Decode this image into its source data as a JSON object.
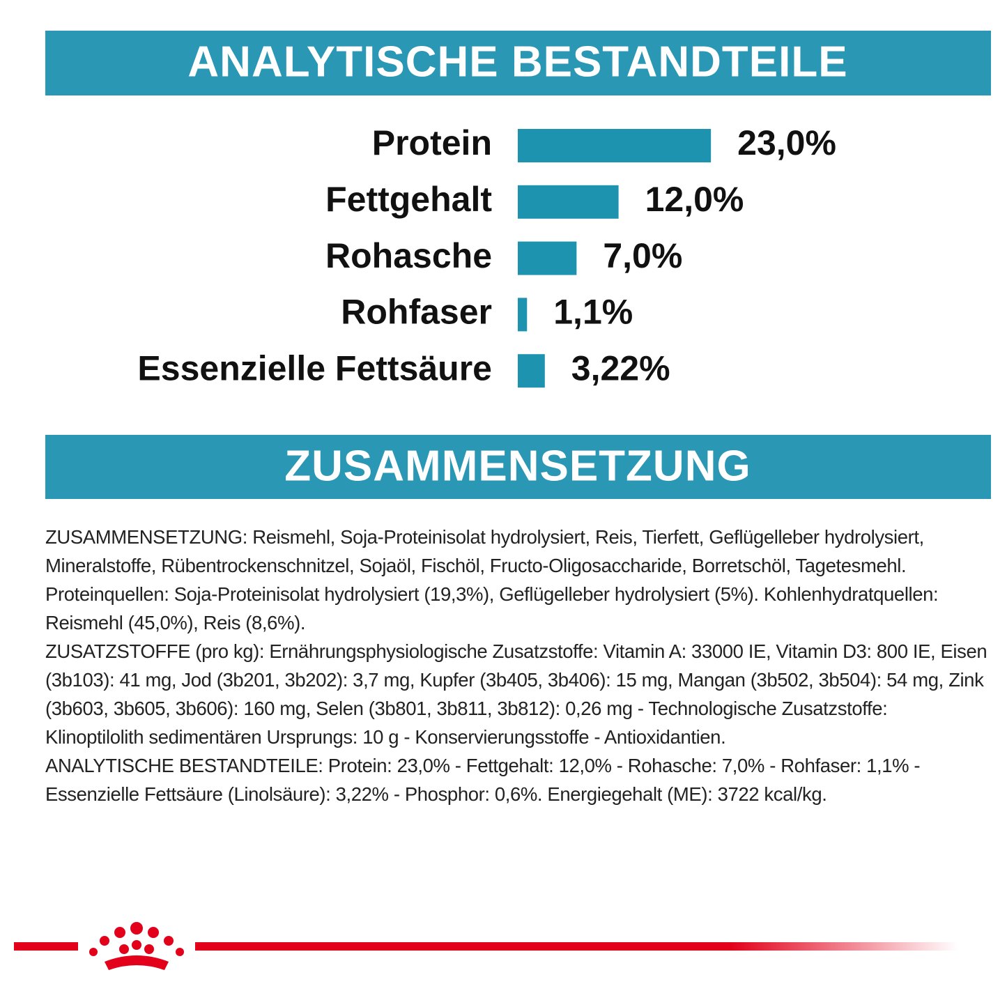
{
  "chart_data": {
    "type": "bar",
    "title": "ANALYTISCHE BESTANDTEILE",
    "categories": [
      "Protein",
      "Fettgehalt",
      "Rohasche",
      "Rohfaser",
      "Essenzielle Fettsäure"
    ],
    "values": [
      23.0,
      12.0,
      7.0,
      1.1,
      3.22
    ],
    "value_labels": [
      "23,0%",
      "12,0%",
      "7,0%",
      "1,1%",
      "3,22%"
    ],
    "color": "#1e93b0"
  },
  "section": {
    "title": "ZUSAMMENSETZUNG",
    "paragraphs": [
      "ZUSAMMENSETZUNG: Reismehl, Soja-Proteinisolat hydrolysiert, Reis, Tierfett, Geflügelleber hydrolysiert, Mineralstoffe, Rübentrockenschnitzel, Sojaöl, Fischöl, Fructo-Oligosaccharide, Borretschöl, Tagetesmehl. Proteinquellen: Soja-Proteinisolat hydrolysiert (19,3%), Geflügelleber hydrolysiert (5%). Kohlenhydratquellen: Reismehl (45,0%), Reis (8,6%).",
      "ZUSATZSTOFFE (pro kg): Ernährungsphysiologische Zusatzstoffe: Vitamin A: 33000 IE, Vitamin D3: 800 IE, Eisen (3b103): 41 mg, Jod (3b201, 3b202): 3,7 mg, Kupfer (3b405, 3b406): 15 mg, Mangan (3b502, 3b504): 54 mg, Zink (3b603, 3b605, 3b606): 160 mg, Selen (3b801, 3b811, 3b812): 0,26 mg - Technologische Zusatzstoffe: Klinoptilolith sedimentären Ursprungs: 10 g - Konservierungsstoffe - Antioxidantien.",
      "ANALYTISCHE BESTANDTEILE: Protein: 23,0% - Fettgehalt: 12,0% - Rohasche: 7,0% - Rohfaser: 1,1% - Essenzielle Fettsäure (Linolsäure): 3,22% - Phosphor: 0,6%. Energiegehalt (ME): 3722 kcal/kg."
    ]
  }
}
